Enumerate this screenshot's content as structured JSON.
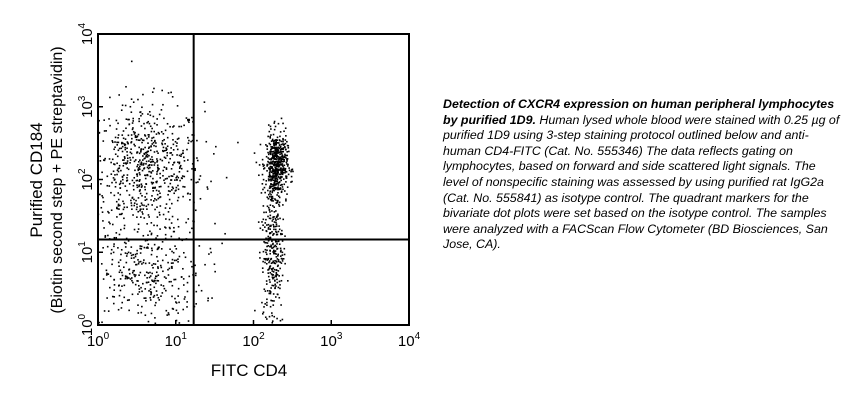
{
  "chart_data": {
    "type": "scatter",
    "subtype": "flow-cytometry-dot-plot",
    "xlabel": "FITC CD4",
    "ylabel_line1": "Purified CD184",
    "ylabel_line2": "(Biotin second step + PE streptavidin)",
    "x_scale": "log",
    "y_scale": "log",
    "xlim": [
      1,
      10000
    ],
    "ylim": [
      1,
      10000
    ],
    "x_ticks": [
      {
        "value": 1,
        "base": "10",
        "exp": "0"
      },
      {
        "value": 10,
        "base": "10",
        "exp": "1"
      },
      {
        "value": 100,
        "base": "10",
        "exp": "2"
      },
      {
        "value": 1000,
        "base": "10",
        "exp": "3"
      },
      {
        "value": 10000,
        "base": "10",
        "exp": "4"
      }
    ],
    "y_ticks": [
      {
        "value": 1,
        "base": "10",
        "exp": "0"
      },
      {
        "value": 10,
        "base": "10",
        "exp": "1"
      },
      {
        "value": 100,
        "base": "10",
        "exp": "2"
      },
      {
        "value": 1000,
        "base": "10",
        "exp": "3"
      },
      {
        "value": 10000,
        "base": "10",
        "exp": "4"
      }
    ],
    "quadrant_gate": {
      "x": 17,
      "y": 15
    },
    "grid": false,
    "legend": "none",
    "point_color": "#000000",
    "populations": [
      {
        "center_log_x": 0.6,
        "center_log_y": 2.15,
        "spread_log_x": 0.38,
        "spread_log_y": 0.45,
        "approx_count": 700
      },
      {
        "center_log_x": 0.6,
        "center_log_y": 0.7,
        "spread_log_x": 0.38,
        "spread_log_y": 0.35,
        "approx_count": 350
      },
      {
        "center_log_x": 2.3,
        "center_log_y": 2.2,
        "spread_log_x": 0.07,
        "spread_log_y": 0.22,
        "approx_count": 500
      },
      {
        "center_log_x": 2.25,
        "center_log_y": 1.1,
        "spread_log_x": 0.07,
        "spread_log_y": 0.6,
        "approx_count": 350
      }
    ]
  },
  "caption": {
    "title": "Detection of CXCR4 expression on human peripheral lymphocytes by purified 1D9.",
    "body": " Human lysed whole blood were stained with 0.25 µg of purified 1D9 using 3-step staining protocol outlined below and anti-human CD4-FITC (Cat. No. 555346) The data reflects gating on lymphocytes, based on forward and side scattered light signals. The level of nonspecific staining was assessed by using purified rat IgG2a (Cat. No. 555841) as isotype control. The quadrant markers for the bivariate dot plots were set based on the isotype control. The samples were analyzed with a FACScan Flow Cytometer (BD Biosciences, San Jose, CA)."
  }
}
